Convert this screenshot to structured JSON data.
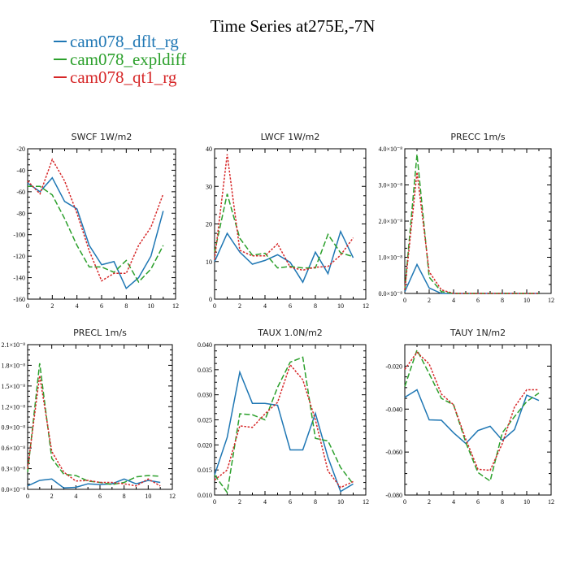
{
  "title": "Time Series at275E,-7N",
  "legend": [
    {
      "label": "cam078_dflt_rg",
      "color": "#1f77b4"
    },
    {
      "label": "cam078_expldiff",
      "color": "#2ca02c"
    },
    {
      "label": "cam078_qt1_rg",
      "color": "#d62728"
    }
  ],
  "chart_data": [
    {
      "type": "line",
      "title": "SWCF   1W/m2",
      "x": [
        0,
        1,
        2,
        3,
        4,
        5,
        6,
        7,
        8,
        9,
        10,
        11
      ],
      "xlim": [
        0,
        12
      ],
      "ylim": [
        -160,
        -20
      ],
      "xticks": [
        "0",
        "2",
        "4",
        "6",
        "8",
        "10",
        "12"
      ],
      "yticks": [
        "-20",
        "-40",
        "-60",
        "-80",
        "-100",
        "-120",
        "-140",
        "-160"
      ],
      "series": [
        {
          "name": "cam078_dflt_rg",
          "values": [
            -52,
            -60,
            -47,
            -69,
            -76,
            -110,
            -128,
            -125,
            -150,
            -140,
            -120,
            -78
          ]
        },
        {
          "name": "cam078_expldiff",
          "values": [
            -55,
            -55,
            -63,
            -85,
            -110,
            -130,
            -130,
            -135,
            -124,
            -144,
            -132,
            -110
          ]
        },
        {
          "name": "cam078_qt1_rg",
          "values": [
            -50,
            -62,
            -30,
            -50,
            -80,
            -115,
            -143,
            -136,
            -136,
            -110,
            -93,
            -62
          ]
        }
      ]
    },
    {
      "type": "line",
      "title": "LWCF   1W/m2",
      "x": [
        0,
        1,
        2,
        3,
        4,
        5,
        6,
        7,
        8,
        9,
        10,
        11
      ],
      "xlim": [
        0,
        12
      ],
      "ylim": [
        0,
        40
      ],
      "xticks": [
        "0",
        "2",
        "4",
        "6",
        "8",
        "10",
        "12"
      ],
      "yticks": [
        "0",
        "10",
        "20",
        "30",
        "40"
      ],
      "series": [
        {
          "name": "cam078_dflt_rg",
          "values": [
            10,
            17.5,
            12.5,
            9.3,
            10.3,
            11.8,
            9.8,
            4.5,
            12.5,
            6.8,
            18,
            11
          ]
        },
        {
          "name": "cam078_expldiff",
          "values": [
            12.5,
            28,
            16.2,
            11.7,
            12.2,
            8.3,
            8.7,
            8.3,
            8.3,
            17.2,
            12.3,
            11.3
          ]
        },
        {
          "name": "cam078_qt1_rg",
          "values": [
            10.5,
            38.5,
            13,
            11.5,
            11.5,
            14.7,
            8.5,
            7.7,
            8.5,
            8.7,
            11.7,
            16.3
          ]
        }
      ]
    },
    {
      "type": "line",
      "title": "PRECC   1m/s",
      "x": [
        0,
        1,
        2,
        3,
        4,
        5,
        6,
        7,
        8,
        9,
        10,
        11
      ],
      "xlim": [
        0,
        12
      ],
      "ylim": [
        0,
        4e-08
      ],
      "xticks": [
        "0",
        "2",
        "4",
        "6",
        "8",
        "10",
        "12"
      ],
      "yticks": [
        "0.0×10⁻⁸",
        "1.0×10⁻⁸",
        "2.0×10⁻⁸",
        "3.0×10⁻⁸",
        "4.0×10⁻⁸"
      ],
      "series": [
        {
          "name": "cam078_dflt_rg",
          "values": [
            5e-10,
            8e-09,
            1.5e-09,
            0,
            0,
            0,
            0,
            0,
            0,
            0,
            0,
            0
          ]
        },
        {
          "name": "cam078_expldiff",
          "values": [
            1e-09,
            3.85e-08,
            4.5e-09,
            5e-10,
            0,
            0,
            0,
            0,
            0,
            0,
            0,
            0
          ]
        },
        {
          "name": "cam078_qt1_rg",
          "values": [
            1e-09,
            3.35e-08,
            6e-09,
            1e-09,
            0,
            0,
            0,
            0,
            0,
            0,
            0,
            0
          ]
        }
      ]
    },
    {
      "type": "line",
      "title": "PRECL   1m/s",
      "x": [
        0,
        1,
        2,
        3,
        4,
        5,
        6,
        7,
        8,
        9,
        10,
        11
      ],
      "xlim": [
        0,
        12
      ],
      "ylim": [
        0,
        2.1e-08
      ],
      "xticks": [
        "0",
        "2",
        "4",
        "6",
        "8",
        "10",
        "12"
      ],
      "yticks": [
        "0.0×10⁻⁸",
        "0.3×10⁻⁸",
        "0.6×10⁻⁸",
        "0.9×10⁻⁸",
        "1.2×10⁻⁸",
        "1.5×10⁻⁸",
        "1.8×10⁻⁸",
        "2.1×10⁻⁸"
      ],
      "series": [
        {
          "name": "cam078_dflt_rg",
          "values": [
            5e-10,
            1.3e-09,
            1.5e-09,
            2e-10,
            3e-10,
            8e-10,
            7e-10,
            8e-10,
            1.5e-09,
            8e-10,
            1.3e-09,
            1e-09
          ]
        },
        {
          "name": "cam078_expldiff",
          "values": [
            2.5e-09,
            1.83e-08,
            4.5e-09,
            2.2e-09,
            2e-09,
            1.2e-09,
            1e-09,
            7e-10,
            1e-09,
            1.8e-09,
            2e-09,
            1.9e-09
          ]
        },
        {
          "name": "cam078_qt1_rg",
          "values": [
            3e-09,
            1.65e-08,
            5.5e-09,
            2.5e-09,
            1.2e-09,
            1.3e-09,
            1e-09,
            1e-09,
            8e-10,
            5e-10,
            1.5e-09,
            5e-10
          ]
        }
      ]
    },
    {
      "type": "line",
      "title": "TAUX   1.0N/m2",
      "x": [
        0,
        1,
        2,
        3,
        4,
        5,
        6,
        7,
        8,
        9,
        10,
        11
      ],
      "xlim": [
        0,
        12
      ],
      "ylim": [
        0.01,
        0.04
      ],
      "xticks": [
        "0",
        "2",
        "4",
        "6",
        "8",
        "10",
        "12"
      ],
      "yticks": [
        "0.010",
        "0.015",
        "0.020",
        "0.025",
        "0.030",
        "0.035",
        "0.040"
      ],
      "series": [
        {
          "name": "cam078_dflt_rg",
          "values": [
            0.014,
            0.0215,
            0.0345,
            0.0283,
            0.0283,
            0.0279,
            0.019,
            0.019,
            0.0263,
            0.0175,
            0.0107,
            0.0122
          ]
        },
        {
          "name": "cam078_expldiff",
          "values": [
            0.014,
            0.0105,
            0.0262,
            0.026,
            0.025,
            0.0315,
            0.0365,
            0.0375,
            0.0213,
            0.0208,
            0.0155,
            0.0122
          ]
        },
        {
          "name": "cam078_qt1_rg",
          "values": [
            0.013,
            0.015,
            0.0238,
            0.0235,
            0.0262,
            0.0285,
            0.036,
            0.033,
            0.025,
            0.0148,
            0.0115,
            0.0127
          ]
        }
      ]
    },
    {
      "type": "line",
      "title": "TAUY   1N/m2",
      "x": [
        0,
        1,
        2,
        3,
        4,
        5,
        6,
        7,
        8,
        9,
        10,
        11
      ],
      "xlim": [
        0,
        12
      ],
      "ylim": [
        -0.08,
        -0.01
      ],
      "xticks": [
        "0",
        "2",
        "4",
        "6",
        "8",
        "10",
        "12"
      ],
      "yticks": [
        "-0.020",
        "-0.040",
        "-0.060",
        "-0.080"
      ],
      "ytick_values": [
        -0.02,
        -0.04,
        -0.06,
        -0.08
      ],
      "series": [
        {
          "name": "cam078_dflt_rg",
          "values": [
            -0.0345,
            -0.031,
            -0.045,
            -0.0452,
            -0.051,
            -0.056,
            -0.05,
            -0.048,
            -0.0545,
            -0.0495,
            -0.0335,
            -0.036
          ]
        },
        {
          "name": "cam078_expldiff",
          "values": [
            -0.0295,
            -0.0125,
            -0.0235,
            -0.035,
            -0.038,
            -0.0555,
            -0.0695,
            -0.0735,
            -0.051,
            -0.0435,
            -0.0365,
            -0.0325
          ]
        },
        {
          "name": "cam078_qt1_rg",
          "values": [
            -0.0215,
            -0.0135,
            -0.019,
            -0.033,
            -0.038,
            -0.054,
            -0.068,
            -0.0685,
            -0.056,
            -0.039,
            -0.031,
            -0.031
          ]
        }
      ]
    }
  ]
}
